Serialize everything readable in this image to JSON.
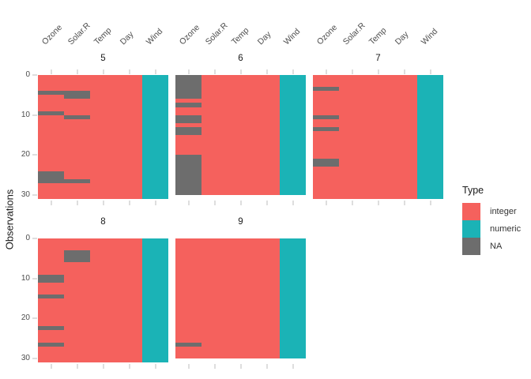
{
  "chart_data": {
    "type": "heatmap",
    "title": "",
    "ylabel": "Observations",
    "x_categories": [
      "Ozone",
      "Solar.R",
      "Temp",
      "Day",
      "Wind"
    ],
    "column_types": {
      "Ozone": "integer",
      "Solar.R": "integer",
      "Temp": "integer",
      "Day": "integer",
      "Wind": "numeric"
    },
    "y_ticks": [
      0,
      10,
      20,
      30
    ],
    "y_max": 31,
    "grid": "off (light tick stubs only, minimal theme)",
    "legend": {
      "title": "Type",
      "position": "right",
      "entries": [
        {
          "label": "integer",
          "color": "#f5615d"
        },
        {
          "label": "numeric",
          "color": "#1bb3b6"
        },
        {
          "label": "NA",
          "color": "#6d6d6d"
        }
      ]
    },
    "facet_layout": [
      [
        "5",
        "6",
        "7"
      ],
      [
        "8",
        "9"
      ]
    ],
    "facets": [
      {
        "label": "5",
        "n_obs": 31,
        "na_cells": {
          "Ozone": [
            5,
            10,
            25,
            26,
            27
          ],
          "Solar.R": [
            5,
            6,
            11,
            27
          ]
        }
      },
      {
        "label": "6",
        "n_obs": 30,
        "na_cells": {
          "Ozone": [
            1,
            2,
            3,
            4,
            5,
            6,
            8,
            11,
            12,
            14,
            15,
            21,
            22,
            23,
            24,
            25,
            26,
            27,
            28,
            29,
            30
          ],
          "Solar.R": []
        }
      },
      {
        "label": "7",
        "n_obs": 31,
        "na_cells": {
          "Ozone": [
            4,
            11,
            14,
            22,
            23
          ],
          "Solar.R": []
        }
      },
      {
        "label": "8",
        "n_obs": 31,
        "na_cells": {
          "Ozone": [
            10,
            11,
            15,
            23,
            27
          ],
          "Solar.R": [
            4,
            5,
            6
          ]
        }
      },
      {
        "label": "9",
        "n_obs": 30,
        "na_cells": {
          "Ozone": [
            27
          ],
          "Solar.R": []
        }
      }
    ],
    "colors": {
      "integer": "#f5615d",
      "numeric": "#1bb3b6",
      "na": "#6d6d6d",
      "tick": "#dedede",
      "tick_label": "#4d4d4d",
      "strip_text": "#1a1a1a",
      "axis_title": "#1a1a1a",
      "background": "#ffffff"
    }
  }
}
